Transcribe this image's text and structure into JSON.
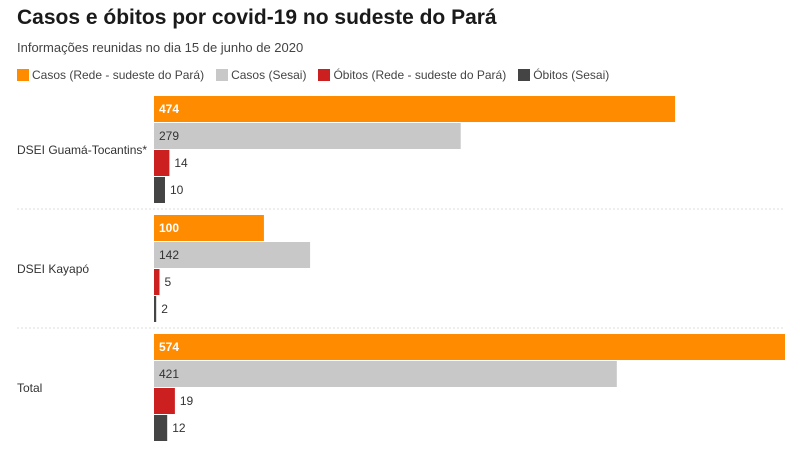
{
  "title": "Casos e óbitos por covid-19 no sudeste do Pará",
  "subtitle": "Informações reunidas no dia 15 de junho de 2020",
  "chart_data": {
    "type": "bar",
    "orientation": "horizontal",
    "categories": [
      "DSEI Guamá-Tocantins*",
      "DSEI Kayapó",
      "Total"
    ],
    "series": [
      {
        "name": "Casos (Rede - sudeste do Pará)",
        "color": "#ff8c00",
        "values": [
          474,
          100,
          574
        ]
      },
      {
        "name": "Casos (Sesai)",
        "color": "#c8c8c8",
        "values": [
          279,
          142,
          421
        ]
      },
      {
        "name": "Óbitos (Rede - sudeste do Pará)",
        "color": "#cc2020",
        "values": [
          14,
          5,
          19
        ]
      },
      {
        "name": "Óbitos (Sesai)",
        "color": "#444444",
        "values": [
          10,
          2,
          12
        ]
      }
    ],
    "xlim": [
      0,
      574
    ],
    "legend": "top-left",
    "grid": false
  }
}
